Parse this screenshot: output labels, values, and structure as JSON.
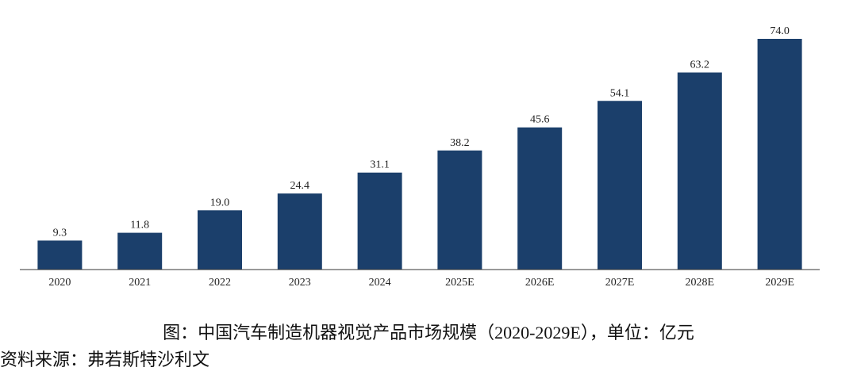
{
  "chart_data": {
    "type": "bar",
    "categories": [
      "2020",
      "2021",
      "2022",
      "2023",
      "2024",
      "2025E",
      "2026E",
      "2027E",
      "2028E",
      "2029E"
    ],
    "values": [
      9.3,
      11.8,
      19.0,
      24.4,
      31.1,
      38.2,
      45.6,
      54.1,
      63.2,
      74.0
    ],
    "value_labels": [
      "9.3",
      "11.8",
      "19.0",
      "24.4",
      "31.1",
      "38.2",
      "45.6",
      "54.1",
      "63.2",
      "74.0"
    ],
    "title": "",
    "xlabel": "",
    "ylabel": "",
    "ylim": [
      0,
      80
    ],
    "grid": false,
    "bar_color": "#1b3f6b"
  },
  "caption": "图：中国汽车制造机器视觉产品市场规模（2020-2029E），单位：亿元",
  "source": "资料来源：弗若斯特沙利文"
}
